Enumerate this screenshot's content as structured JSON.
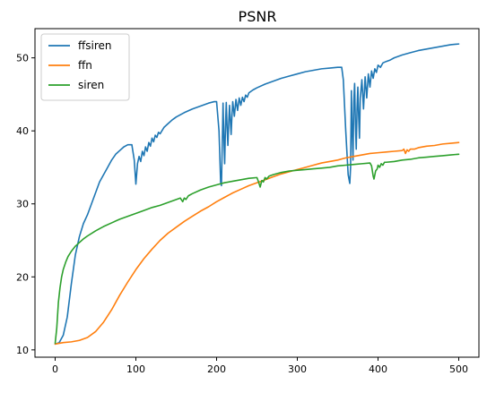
{
  "chart_data": {
    "type": "line",
    "title": "PSNR",
    "xlabel": "",
    "ylabel": "",
    "xlim": [
      -25,
      525
    ],
    "ylim": [
      9.0,
      54.0
    ],
    "xticks": [
      0,
      100,
      200,
      300,
      400,
      500
    ],
    "yticks": [
      10,
      20,
      30,
      40,
      50
    ],
    "grid": false,
    "legend_position": "top-left",
    "series": [
      {
        "name": "ffsiren",
        "color": "#1f77b4",
        "points": [
          [
            0,
            10.8
          ],
          [
            5,
            11.0
          ],
          [
            10,
            12.0
          ],
          [
            15,
            14.5
          ],
          [
            20,
            19.0
          ],
          [
            25,
            23.0
          ],
          [
            30,
            25.5
          ],
          [
            35,
            27.3
          ],
          [
            40,
            28.5
          ],
          [
            45,
            30.0
          ],
          [
            50,
            31.5
          ],
          [
            55,
            33.0
          ],
          [
            60,
            34.0
          ],
          [
            65,
            35.0
          ],
          [
            70,
            36.0
          ],
          [
            75,
            36.8
          ],
          [
            80,
            37.3
          ],
          [
            85,
            37.8
          ],
          [
            90,
            38.1
          ],
          [
            95,
            38.1
          ],
          [
            98,
            36.0
          ],
          [
            100,
            32.7
          ],
          [
            102,
            35.5
          ],
          [
            104,
            36.5
          ],
          [
            106,
            35.8
          ],
          [
            108,
            37.2
          ],
          [
            110,
            36.6
          ],
          [
            112,
            37.8
          ],
          [
            114,
            37.2
          ],
          [
            116,
            38.4
          ],
          [
            118,
            37.9
          ],
          [
            120,
            39.0
          ],
          [
            122,
            38.5
          ],
          [
            124,
            39.4
          ],
          [
            126,
            39.1
          ],
          [
            128,
            39.8
          ],
          [
            130,
            39.6
          ],
          [
            135,
            40.5
          ],
          [
            140,
            41.0
          ],
          [
            145,
            41.5
          ],
          [
            150,
            41.9
          ],
          [
            160,
            42.5
          ],
          [
            170,
            43.0
          ],
          [
            180,
            43.4
          ],
          [
            190,
            43.8
          ],
          [
            197,
            44.0
          ],
          [
            200,
            44.0
          ],
          [
            203,
            40.0
          ],
          [
            205,
            33.0
          ],
          [
            206,
            32.5
          ],
          [
            207,
            38.0
          ],
          [
            208,
            43.8
          ],
          [
            209,
            39.0
          ],
          [
            210,
            35.5
          ],
          [
            211,
            40.5
          ],
          [
            212,
            43.9
          ],
          [
            213,
            40.5
          ],
          [
            214,
            38.0
          ],
          [
            215,
            41.0
          ],
          [
            216,
            43.5
          ],
          [
            217,
            41.5
          ],
          [
            218,
            39.5
          ],
          [
            219,
            42.0
          ],
          [
            220,
            44.0
          ],
          [
            222,
            42.0
          ],
          [
            224,
            44.3
          ],
          [
            226,
            42.8
          ],
          [
            228,
            44.5
          ],
          [
            230,
            43.5
          ],
          [
            232,
            44.6
          ],
          [
            234,
            44.0
          ],
          [
            236,
            44.9
          ],
          [
            238,
            44.6
          ],
          [
            240,
            45.2
          ],
          [
            245,
            45.6
          ],
          [
            250,
            45.9
          ],
          [
            260,
            46.4
          ],
          [
            270,
            46.8
          ],
          [
            280,
            47.2
          ],
          [
            290,
            47.5
          ],
          [
            300,
            47.8
          ],
          [
            310,
            48.1
          ],
          [
            320,
            48.3
          ],
          [
            330,
            48.5
          ],
          [
            340,
            48.6
          ],
          [
            350,
            48.7
          ],
          [
            355,
            48.7
          ],
          [
            357,
            47.0
          ],
          [
            360,
            40.0
          ],
          [
            363,
            34.0
          ],
          [
            365,
            32.8
          ],
          [
            366,
            35.0
          ],
          [
            367,
            45.5
          ],
          [
            368,
            40.0
          ],
          [
            369,
            36.0
          ],
          [
            370,
            44.0
          ],
          [
            371,
            46.5
          ],
          [
            372,
            41.0
          ],
          [
            373,
            37.5
          ],
          [
            374,
            43.0
          ],
          [
            375,
            46.0
          ],
          [
            376,
            42.0
          ],
          [
            377,
            39.0
          ],
          [
            378,
            44.5
          ],
          [
            380,
            47.0
          ],
          [
            382,
            43.0
          ],
          [
            384,
            47.4
          ],
          [
            386,
            44.5
          ],
          [
            388,
            47.8
          ],
          [
            390,
            46.0
          ],
          [
            392,
            48.2
          ],
          [
            394,
            47.2
          ],
          [
            396,
            48.5
          ],
          [
            398,
            48.0
          ],
          [
            400,
            49.0
          ],
          [
            403,
            48.7
          ],
          [
            406,
            49.3
          ],
          [
            410,
            49.5
          ],
          [
            415,
            49.7
          ],
          [
            420,
            50.0
          ],
          [
            430,
            50.4
          ],
          [
            440,
            50.7
          ],
          [
            450,
            51.0
          ],
          [
            460,
            51.2
          ],
          [
            470,
            51.4
          ],
          [
            480,
            51.6
          ],
          [
            490,
            51.8
          ],
          [
            500,
            51.9
          ]
        ]
      },
      {
        "name": "ffn",
        "color": "#ff7f0e",
        "points": [
          [
            0,
            10.8
          ],
          [
            10,
            11.0
          ],
          [
            20,
            11.1
          ],
          [
            30,
            11.3
          ],
          [
            40,
            11.7
          ],
          [
            50,
            12.5
          ],
          [
            60,
            13.8
          ],
          [
            70,
            15.5
          ],
          [
            80,
            17.5
          ],
          [
            90,
            19.3
          ],
          [
            100,
            21.0
          ],
          [
            110,
            22.5
          ],
          [
            120,
            23.8
          ],
          [
            130,
            25.0
          ],
          [
            140,
            26.0
          ],
          [
            150,
            26.8
          ],
          [
            160,
            27.6
          ],
          [
            170,
            28.3
          ],
          [
            180,
            29.0
          ],
          [
            190,
            29.6
          ],
          [
            200,
            30.3
          ],
          [
            210,
            30.9
          ],
          [
            220,
            31.5
          ],
          [
            230,
            32.0
          ],
          [
            240,
            32.5
          ],
          [
            250,
            32.9
          ],
          [
            260,
            33.3
          ],
          [
            270,
            33.7
          ],
          [
            280,
            34.1
          ],
          [
            290,
            34.4
          ],
          [
            300,
            34.7
          ],
          [
            310,
            35.0
          ],
          [
            320,
            35.3
          ],
          [
            330,
            35.6
          ],
          [
            340,
            35.8
          ],
          [
            350,
            36.0
          ],
          [
            360,
            36.3
          ],
          [
            370,
            36.5
          ],
          [
            380,
            36.7
          ],
          [
            390,
            36.9
          ],
          [
            400,
            37.0
          ],
          [
            410,
            37.1
          ],
          [
            420,
            37.2
          ],
          [
            430,
            37.3
          ],
          [
            432,
            37.5
          ],
          [
            434,
            36.9
          ],
          [
            436,
            37.4
          ],
          [
            438,
            37.2
          ],
          [
            440,
            37.5
          ],
          [
            445,
            37.5
          ],
          [
            450,
            37.7
          ],
          [
            460,
            37.9
          ],
          [
            470,
            38.0
          ],
          [
            480,
            38.2
          ],
          [
            490,
            38.3
          ],
          [
            500,
            38.4
          ]
        ]
      },
      {
        "name": "siren",
        "color": "#2ca02c",
        "points": [
          [
            0,
            10.9
          ],
          [
            2,
            13.0
          ],
          [
            4,
            16.5
          ],
          [
            6,
            18.5
          ],
          [
            8,
            20.0
          ],
          [
            10,
            21.0
          ],
          [
            13,
            22.0
          ],
          [
            16,
            22.8
          ],
          [
            20,
            23.5
          ],
          [
            25,
            24.2
          ],
          [
            30,
            24.7
          ],
          [
            35,
            25.2
          ],
          [
            40,
            25.6
          ],
          [
            50,
            26.3
          ],
          [
            60,
            26.9
          ],
          [
            70,
            27.4
          ],
          [
            80,
            27.9
          ],
          [
            90,
            28.3
          ],
          [
            100,
            28.7
          ],
          [
            110,
            29.1
          ],
          [
            120,
            29.5
          ],
          [
            130,
            29.8
          ],
          [
            140,
            30.2
          ],
          [
            150,
            30.6
          ],
          [
            155,
            30.8
          ],
          [
            158,
            30.3
          ],
          [
            160,
            30.8
          ],
          [
            162,
            30.6
          ],
          [
            165,
            31.1
          ],
          [
            170,
            31.4
          ],
          [
            180,
            31.9
          ],
          [
            190,
            32.3
          ],
          [
            200,
            32.6
          ],
          [
            210,
            32.9
          ],
          [
            220,
            33.1
          ],
          [
            230,
            33.3
          ],
          [
            240,
            33.5
          ],
          [
            250,
            33.6
          ],
          [
            252,
            33.0
          ],
          [
            254,
            32.3
          ],
          [
            256,
            33.2
          ],
          [
            258,
            33.0
          ],
          [
            260,
            33.6
          ],
          [
            262,
            33.4
          ],
          [
            265,
            33.8
          ],
          [
            270,
            34.0
          ],
          [
            280,
            34.3
          ],
          [
            290,
            34.5
          ],
          [
            300,
            34.6
          ],
          [
            310,
            34.7
          ],
          [
            320,
            34.8
          ],
          [
            330,
            34.9
          ],
          [
            340,
            35.0
          ],
          [
            350,
            35.2
          ],
          [
            360,
            35.3
          ],
          [
            370,
            35.4
          ],
          [
            380,
            35.5
          ],
          [
            390,
            35.6
          ],
          [
            392,
            35.2
          ],
          [
            394,
            33.8
          ],
          [
            395,
            33.4
          ],
          [
            397,
            34.5
          ],
          [
            399,
            34.8
          ],
          [
            400,
            35.3
          ],
          [
            402,
            35.0
          ],
          [
            404,
            35.5
          ],
          [
            406,
            35.3
          ],
          [
            408,
            35.7
          ],
          [
            410,
            35.7
          ],
          [
            420,
            35.8
          ],
          [
            430,
            36.0
          ],
          [
            440,
            36.1
          ],
          [
            450,
            36.3
          ],
          [
            460,
            36.4
          ],
          [
            470,
            36.5
          ],
          [
            480,
            36.6
          ],
          [
            490,
            36.7
          ],
          [
            500,
            36.8
          ]
        ]
      }
    ]
  }
}
